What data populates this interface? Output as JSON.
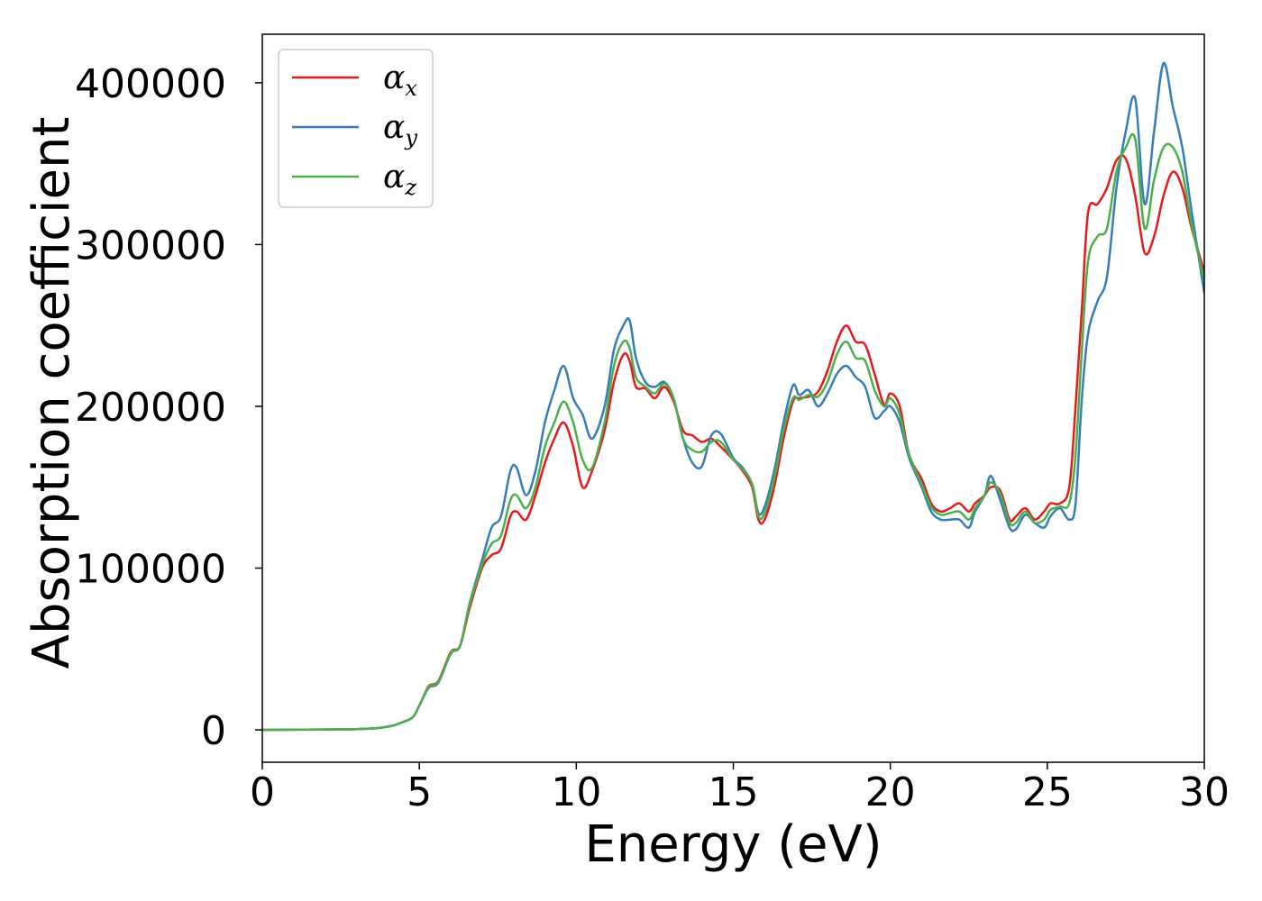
{
  "chart_data": {
    "type": "line",
    "xlabel": "Energy (eV)",
    "ylabel": "Absorption coefficient",
    "xlim": [
      0,
      30
    ],
    "ylim": [
      -20000,
      430000
    ],
    "x_ticks": [
      0,
      5,
      10,
      15,
      20,
      25,
      30
    ],
    "x_tick_labels": [
      "0",
      "5",
      "10",
      "15",
      "20",
      "25",
      "30"
    ],
    "y_ticks": [
      0,
      100000,
      200000,
      300000,
      400000
    ],
    "y_tick_labels": [
      "0",
      "100000",
      "200000",
      "300000",
      "400000"
    ],
    "grid": false,
    "legend_position": "top-left",
    "series": [
      {
        "name": "α",
        "subscript": "x",
        "color": "#e41a1c",
        "x": [
          0,
          3,
          4,
          4.5,
          4.8,
          5,
          5.3,
          5.6,
          6,
          6.3,
          6.6,
          7,
          7.3,
          7.6,
          7.9,
          8.1,
          8.4,
          8.7,
          9,
          9.3,
          9.6,
          9.9,
          10.2,
          10.5,
          10.9,
          11.2,
          11.5,
          11.7,
          11.9,
          12.2,
          12.5,
          12.8,
          13.1,
          13.4,
          13.7,
          14,
          14.3,
          14.6,
          15,
          15.3,
          15.6,
          15.8,
          16,
          16.3,
          16.6,
          16.9,
          17.1,
          17.4,
          17.7,
          18,
          18.3,
          18.6,
          18.9,
          19.2,
          19.5,
          19.8,
          20,
          20.3,
          20.6,
          21,
          21.3,
          21.6,
          21.9,
          22.2,
          22.5,
          22.7,
          23,
          23.2,
          23.5,
          23.8,
          24,
          24.3,
          24.6,
          24.9,
          25.1,
          25.4,
          25.7,
          25.9,
          26.1,
          26.3,
          26.6,
          26.9,
          27.2,
          27.5,
          27.8,
          28.1,
          28.4,
          28.7,
          29,
          29.3,
          29.6,
          30
        ],
        "y": [
          0,
          500,
          2000,
          5000,
          8000,
          15000,
          27000,
          30000,
          48000,
          52000,
          75000,
          100000,
          108000,
          112000,
          132000,
          135000,
          130000,
          145000,
          165000,
          180000,
          190000,
          175000,
          150000,
          160000,
          185000,
          215000,
          232000,
          228000,
          212000,
          211000,
          205000,
          212000,
          203000,
          185000,
          182000,
          178000,
          180000,
          175000,
          167000,
          160000,
          150000,
          130000,
          130000,
          150000,
          180000,
          203000,
          205000,
          206000,
          209000,
          222000,
          240000,
          250000,
          240000,
          238000,
          220000,
          201000,
          208000,
          200000,
          170000,
          155000,
          140000,
          135000,
          137000,
          140000,
          135000,
          140000,
          145000,
          150000,
          148000,
          130000,
          132000,
          137000,
          130000,
          135000,
          140000,
          140000,
          150000,
          200000,
          260000,
          320000,
          325000,
          335000,
          352000,
          353000,
          330000,
          295000,
          305000,
          330000,
          345000,
          335000,
          310000,
          283000
        ]
      },
      {
        "name": "α",
        "subscript": "y",
        "color": "#377eb8",
        "x": [
          0,
          3,
          4,
          4.5,
          4.8,
          5,
          5.3,
          5.6,
          6,
          6.3,
          6.6,
          7,
          7.3,
          7.6,
          7.9,
          8.1,
          8.4,
          8.7,
          9,
          9.3,
          9.6,
          9.9,
          10.2,
          10.5,
          10.9,
          11.2,
          11.5,
          11.7,
          11.9,
          12.2,
          12.5,
          12.8,
          13.1,
          13.4,
          13.7,
          14,
          14.3,
          14.6,
          15,
          15.3,
          15.6,
          15.8,
          16,
          16.3,
          16.6,
          16.9,
          17.1,
          17.4,
          17.7,
          18,
          18.3,
          18.6,
          18.9,
          19.2,
          19.5,
          19.8,
          20,
          20.3,
          20.6,
          21,
          21.3,
          21.6,
          21.9,
          22.2,
          22.5,
          22.7,
          23,
          23.2,
          23.5,
          23.8,
          24,
          24.3,
          24.6,
          24.9,
          25.1,
          25.4,
          25.7,
          25.9,
          26.1,
          26.3,
          26.6,
          26.9,
          27.2,
          27.5,
          27.8,
          28.1,
          28.4,
          28.7,
          29,
          29.3,
          29.6,
          30
        ],
        "y": [
          0,
          500,
          2000,
          5000,
          8000,
          15000,
          26000,
          29000,
          47000,
          52000,
          78000,
          105000,
          125000,
          132000,
          160000,
          162000,
          145000,
          160000,
          190000,
          210000,
          225000,
          205000,
          195000,
          180000,
          200000,
          235000,
          250000,
          253000,
          230000,
          215000,
          212000,
          215000,
          205000,
          180000,
          165000,
          163000,
          182000,
          183000,
          168000,
          162000,
          152000,
          134000,
          138000,
          160000,
          190000,
          213000,
          207000,
          210000,
          200000,
          208000,
          220000,
          225000,
          218000,
          212000,
          193000,
          197000,
          200000,
          190000,
          168000,
          150000,
          135000,
          130000,
          130000,
          130000,
          125000,
          135000,
          145000,
          157000,
          142000,
          125000,
          124000,
          133000,
          128000,
          125000,
          132000,
          137000,
          130000,
          140000,
          205000,
          245000,
          265000,
          280000,
          335000,
          370000,
          390000,
          325000,
          370000,
          412000,
          385000,
          360000,
          320000,
          270000
        ]
      },
      {
        "name": "α",
        "subscript": "z",
        "color": "#4daf4a",
        "x": [
          0,
          3,
          4,
          4.5,
          4.8,
          5,
          5.3,
          5.6,
          6,
          6.3,
          6.6,
          7,
          7.3,
          7.6,
          7.9,
          8.1,
          8.4,
          8.7,
          9,
          9.3,
          9.6,
          9.9,
          10.2,
          10.5,
          10.9,
          11.2,
          11.5,
          11.7,
          11.9,
          12.2,
          12.5,
          12.8,
          13.1,
          13.4,
          13.7,
          14,
          14.3,
          14.6,
          15,
          15.3,
          15.6,
          15.8,
          16,
          16.3,
          16.6,
          16.9,
          17.1,
          17.4,
          17.7,
          18,
          18.3,
          18.6,
          18.9,
          19.2,
          19.5,
          19.8,
          20,
          20.3,
          20.6,
          21,
          21.3,
          21.6,
          21.9,
          22.2,
          22.5,
          22.7,
          23,
          23.2,
          23.5,
          23.8,
          24,
          24.3,
          24.6,
          24.9,
          25.1,
          25.4,
          25.7,
          25.9,
          26.1,
          26.3,
          26.6,
          26.9,
          27.2,
          27.5,
          27.8,
          28.1,
          28.4,
          28.7,
          29,
          29.3,
          29.6,
          30
        ],
        "y": [
          0,
          500,
          2000,
          5000,
          8000,
          15000,
          26500,
          29500,
          47500,
          52000,
          77000,
          102000,
          115000,
          120000,
          142000,
          145000,
          137000,
          150000,
          175000,
          190000,
          203000,
          190000,
          167000,
          162000,
          190000,
          225000,
          240000,
          236000,
          218000,
          212000,
          208000,
          214000,
          205000,
          180000,
          173000,
          172000,
          178000,
          178000,
          167000,
          161000,
          152000,
          132000,
          134000,
          155000,
          185000,
          205000,
          204000,
          207000,
          206000,
          215000,
          232000,
          240000,
          230000,
          228000,
          210000,
          200000,
          205000,
          195000,
          170000,
          152000,
          138000,
          133000,
          134000,
          135000,
          130000,
          137000,
          145000,
          153000,
          146000,
          128000,
          128000,
          135000,
          128000,
          130000,
          136000,
          138000,
          140000,
          170000,
          235000,
          290000,
          305000,
          310000,
          345000,
          360000,
          365000,
          310000,
          340000,
          360000,
          360000,
          345000,
          312000,
          278000
        ]
      }
    ]
  }
}
